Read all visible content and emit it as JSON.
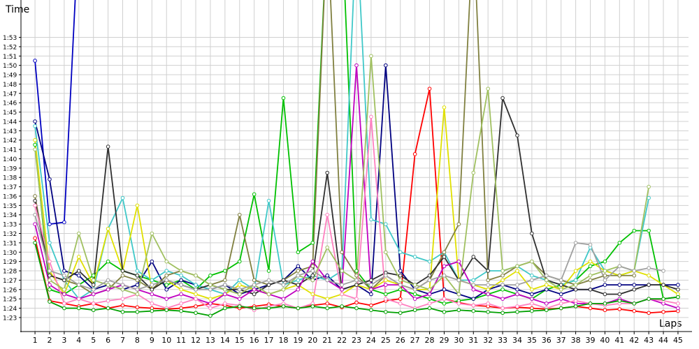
{
  "chart_data": {
    "type": "line",
    "y_label": "Time",
    "x_label": "Laps",
    "grid": true,
    "x": [
      1,
      2,
      3,
      4,
      5,
      6,
      7,
      8,
      9,
      10,
      11,
      12,
      13,
      14,
      15,
      16,
      17,
      18,
      19,
      20,
      21,
      22,
      23,
      24,
      25,
      26,
      27,
      28,
      29,
      30,
      31,
      32,
      33,
      34,
      35,
      36,
      37,
      38,
      39,
      40,
      41,
      42,
      43,
      44,
      45
    ],
    "xlim": [
      0.04,
      45.72
    ],
    "xticks": [
      1,
      2,
      3,
      4,
      5,
      6,
      7,
      8,
      9,
      10,
      11,
      12,
      13,
      14,
      15,
      16,
      17,
      18,
      19,
      20,
      21,
      22,
      23,
      24,
      25,
      26,
      27,
      28,
      29,
      30,
      31,
      32,
      33,
      34,
      35,
      36,
      37,
      38,
      39,
      40,
      41,
      42,
      43,
      44,
      45
    ],
    "ylim": [
      81.5,
      117
    ],
    "yticks": [
      {
        "value": 83,
        "label": "1:23"
      },
      {
        "value": 84,
        "label": "1:24"
      },
      {
        "value": 85,
        "label": "1:25"
      },
      {
        "value": 86,
        "label": "1:26"
      },
      {
        "value": 87,
        "label": "1:27"
      },
      {
        "value": 88,
        "label": "1:28"
      },
      {
        "value": 89,
        "label": "1:29"
      },
      {
        "value": 90,
        "label": "1:30"
      },
      {
        "value": 91,
        "label": "1:31"
      },
      {
        "value": 92,
        "label": "1:32"
      },
      {
        "value": 93,
        "label": "1:33"
      },
      {
        "value": 94,
        "label": "1:34"
      },
      {
        "value": 95,
        "label": "1:35"
      },
      {
        "value": 96,
        "label": "1:36"
      },
      {
        "value": 97,
        "label": "1:37"
      },
      {
        "value": 98,
        "label": "1:38"
      },
      {
        "value": 99,
        "label": "1:39"
      },
      {
        "value": 100,
        "label": "1:40"
      },
      {
        "value": 101,
        "label": "1:41"
      },
      {
        "value": 102,
        "label": "1:42"
      },
      {
        "value": 103,
        "label": "1:43"
      },
      {
        "value": 104,
        "label": "1:44"
      },
      {
        "value": 105,
        "label": "1:45"
      },
      {
        "value": 106,
        "label": "1:46"
      },
      {
        "value": 107,
        "label": "1:47"
      },
      {
        "value": 108,
        "label": "1:48"
      },
      {
        "value": 109,
        "label": "1:49"
      },
      {
        "value": 110,
        "label": "1:50"
      },
      {
        "value": 111,
        "label": "1:51"
      },
      {
        "value": 112,
        "label": "1:52"
      },
      {
        "value": 113,
        "label": "1:53"
      }
    ],
    "series": [
      {
        "color": "#ff0000",
        "values": [
          91.5,
          84.8,
          84.5,
          84.2,
          84.5,
          84.0,
          84.3,
          84.1,
          84.0,
          83.9,
          84.0,
          84.2,
          84.5,
          84.3,
          84.0,
          84.2,
          84.4,
          84.2,
          84.0,
          84.3,
          84.5,
          84.1,
          84.6,
          84.3,
          84.8,
          85.0,
          100.5,
          107.5,
          85.0,
          84.6,
          84.3,
          84.2,
          84.0,
          84.1,
          84.0,
          83.9,
          84.0,
          84.2,
          84.0,
          83.8,
          83.9,
          83.7,
          83.5,
          83.6,
          83.7
        ]
      },
      {
        "color": "#00c000",
        "values": [
          101.5,
          86.0,
          85.5,
          86.5,
          87.5,
          89.0,
          88.0,
          87.5,
          87.0,
          86.5,
          87.0,
          86.0,
          87.5,
          88.0,
          89.0,
          96.2,
          88.0,
          106.5,
          90.0,
          91.0,
          125,
          125,
          88.0,
          86.0,
          85.5,
          86.0,
          85.5,
          85.0,
          84.5,
          84.8,
          85.0,
          85.5,
          86.0,
          85.5,
          85.0,
          86.0,
          86.5,
          87.0,
          88.5,
          89.0,
          91.0,
          92.3,
          92.3,
          85.0,
          85.2
        ]
      },
      {
        "color": "#0000c0",
        "values": [
          110.5,
          93.0,
          93.2,
          125,
          null,
          null,
          null,
          null,
          null,
          null,
          null,
          null,
          null,
          null,
          null,
          null,
          null,
          null,
          null,
          null,
          null,
          null,
          null,
          null,
          null,
          null,
          null,
          null,
          null,
          null,
          null,
          null,
          null,
          null,
          null,
          null,
          null,
          null,
          null,
          null,
          null,
          null,
          null,
          null,
          null
        ]
      },
      {
        "color": "#000080",
        "values": [
          104.0,
          97.8,
          88.0,
          87.5,
          86.0,
          86.5,
          86.0,
          86.5,
          89.0,
          86.0,
          87.0,
          86.5,
          86.0,
          86.5,
          85.5,
          86.0,
          86.5,
          87.0,
          88.5,
          87.0,
          87.5,
          86.0,
          86.5,
          85.5,
          110.0,
          88.0,
          86.0,
          85.5,
          86.0,
          85.5,
          85.0,
          86.0,
          86.5,
          86.0,
          85.5,
          86.0,
          85.5,
          86.0,
          86.0,
          86.5,
          86.5,
          86.5,
          86.5,
          86.5,
          86.5
        ]
      },
      {
        "color": "#40c8c8",
        "values": [
          103.5,
          91.0,
          87.0,
          85.0,
          86.0,
          92.5,
          95.8,
          88.0,
          87.0,
          88.0,
          87.5,
          86.5,
          86.0,
          85.5,
          87.0,
          86.0,
          95.5,
          86.5,
          87.0,
          87.5,
          87.0,
          88.0,
          125,
          93.5,
          93.0,
          90.0,
          89.5,
          89.0,
          90.0,
          87.0,
          87.0,
          88.0,
          88.0,
          88.5,
          87.5,
          87.0,
          86.5,
          87.0,
          90.5,
          88.0,
          87.5,
          88.0,
          95.8,
          null,
          null
        ]
      },
      {
        "color": "#e0e000",
        "values": [
          102.0,
          88.0,
          85.5,
          89.5,
          86.5,
          92.5,
          88.0,
          95.0,
          86.0,
          87.0,
          86.0,
          85.5,
          85.0,
          85.5,
          86.5,
          86.0,
          85.5,
          86.0,
          86.5,
          85.5,
          85.0,
          85.5,
          86.5,
          86.0,
          87.0,
          86.5,
          86.0,
          86.0,
          105.5,
          87.0,
          86.5,
          86.0,
          87.0,
          88.0,
          86.0,
          86.5,
          86.0,
          88.0,
          89.0,
          88.0,
          87.5,
          88.0,
          87.5,
          86.5,
          85.5
        ]
      },
      {
        "color": "#808040",
        "values": [
          96.0,
          87.5,
          87.0,
          86.5,
          85.5,
          86.0,
          87.5,
          87.0,
          86.0,
          87.5,
          88.0,
          87.5,
          86.5,
          87.0,
          94.0,
          87.0,
          86.5,
          87.0,
          88.0,
          88.5,
          125,
          90.0,
          87.5,
          86.0,
          87.5,
          86.5,
          86.0,
          87.0,
          90.0,
          93.0,
          125,
          87.0,
          87.5,
          88.5,
          89.0,
          87.5,
          87.0,
          86.5,
          87.0,
          87.5,
          87.5,
          87.5,
          null,
          null,
          null
        ]
      },
      {
        "color": "#303030",
        "values": [
          95.5,
          87.5,
          87.0,
          88.0,
          86.5,
          101.3,
          88.0,
          87.5,
          86.0,
          87.0,
          86.5,
          86.0,
          86.5,
          86.0,
          86.0,
          85.5,
          86.5,
          87.0,
          86.5,
          87.5,
          98.5,
          86.0,
          86.5,
          87.0,
          87.8,
          87.5,
          86.5,
          87.5,
          89.5,
          87.0,
          89.5,
          88.0,
          106.5,
          102.5,
          92.0,
          87.0,
          86.5,
          86.0,
          86.0,
          85.5,
          85.5,
          86.0,
          86.5,
          86.5,
          86.0
        ]
      },
      {
        "color": "#c000c0",
        "values": [
          93.0,
          86.5,
          85.5,
          85.0,
          85.5,
          86.0,
          86.5,
          86.0,
          85.5,
          85.0,
          85.5,
          85.0,
          84.5,
          85.5,
          85.0,
          86.0,
          85.5,
          85.0,
          86.0,
          89.0,
          87.0,
          86.0,
          110.0,
          86.0,
          86.5,
          86.5,
          85.0,
          85.5,
          88.5,
          89.0,
          86.0,
          85.5,
          85.0,
          85.5,
          85.0,
          84.5,
          85.0,
          84.5,
          84.5,
          84.5,
          85.0,
          84.5,
          85.0,
          84.5,
          84.0
        ]
      },
      {
        "color": "#ff80c0",
        "values": [
          95.0,
          89.0,
          84.5,
          85.0,
          84.5,
          84.8,
          85.0,
          85.5,
          84.5,
          84.0,
          84.5,
          85.0,
          84.0,
          84.5,
          84.3,
          83.8,
          84.2,
          84.5,
          84.0,
          84.5,
          94.0,
          85.5,
          85.0,
          104.5,
          85.0,
          84.5,
          84.0,
          84.5,
          85.0,
          84.5,
          84.3,
          84.5,
          84.0,
          84.2,
          84.5,
          84.0,
          84.5,
          84.8,
          84.5,
          84.3,
          84.5,
          84.5,
          85.0,
          84.8,
          84.5
        ]
      },
      {
        "color": "#a0c060",
        "values": [
          101.0,
          87.0,
          86.0,
          92.0,
          87.0,
          86.5,
          86.0,
          85.5,
          92.0,
          89.0,
          88.0,
          87.5,
          86.5,
          86.0,
          85.5,
          86.5,
          85.5,
          86.0,
          87.5,
          87.0,
          90.5,
          88.0,
          87.0,
          111.0,
          90.0,
          87.0,
          86.5,
          86.0,
          87.5,
          85.5,
          98.5,
          107.5,
          88.0,
          88.5,
          89.0,
          87.0,
          86.0,
          86.5,
          87.5,
          88.0,
          88.5,
          88.0,
          97.0,
          null,
          null
        ]
      },
      {
        "color": "#a0a0a0",
        "values": [
          94.0,
          88.0,
          87.5,
          86.5,
          86.0,
          87.0,
          86.5,
          86.0,
          86.5,
          87.0,
          86.5,
          86.0,
          86.0,
          86.5,
          86.0,
          86.5,
          87.0,
          86.5,
          87.5,
          88.0,
          87.0,
          86.5,
          87.0,
          86.5,
          87.5,
          86.5,
          86.0,
          87.0,
          87.5,
          87.0,
          86.5,
          86.5,
          86.5,
          86.5,
          87.0,
          87.5,
          87.0,
          91.0,
          90.8,
          87.0,
          88.5,
          88.0,
          88.3,
          88.0,
          null
        ]
      },
      {
        "color": "#00a000",
        "values": [
          91.0,
          84.7,
          84.0,
          84.0,
          83.8,
          84.0,
          83.6,
          83.6,
          83.7,
          83.8,
          83.7,
          83.5,
          83.2,
          84.0,
          84.2,
          84.0,
          84.0,
          84.2,
          84.0,
          84.2,
          84.0,
          84.2,
          84.0,
          83.8,
          83.6,
          83.5,
          83.8,
          84.0,
          83.6,
          83.8,
          83.7,
          83.6,
          83.5,
          83.6,
          83.7,
          83.8,
          84.0,
          84.2,
          84.5,
          84.5,
          84.8,
          84.5,
          85.0,
          85.0,
          85.2
        ]
      }
    ]
  }
}
